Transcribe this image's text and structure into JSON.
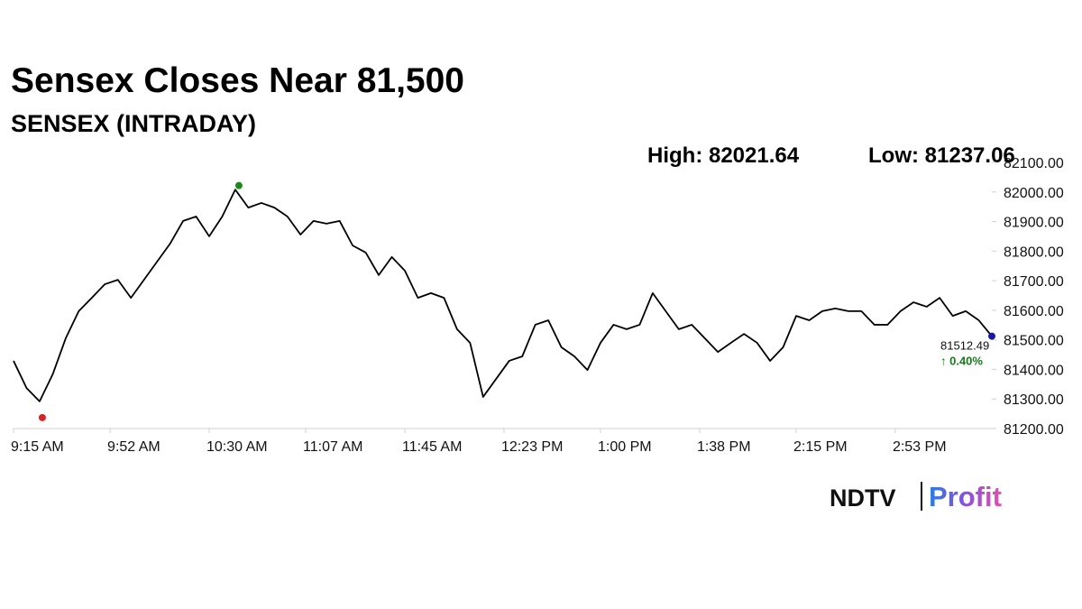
{
  "chart_data": {
    "type": "line",
    "title": "Sensex Closes Near 81,500",
    "subtitle": "SENSEX (INTRADAY)",
    "stats": [
      {
        "label": "High:",
        "value": 82021.64,
        "color": "#1a8a1a"
      },
      {
        "label": "Low:",
        "value": 81237.06,
        "color": "#e02020"
      }
    ],
    "color": "#000000",
    "x": [
      "9:15 AM",
      "9:20 AM",
      "9:25 AM",
      "9:30 AM",
      "9:35 AM",
      "9:40 AM",
      "9:45 AM",
      "9:50 AM",
      "9:55 AM",
      "10:00 AM",
      "10:05 AM",
      "10:10 AM",
      "10:15 AM",
      "10:20 AM",
      "10:25 AM",
      "10:30 AM",
      "10:35 AM",
      "10:40 AM",
      "10:45 AM",
      "10:50 AM",
      "10:55 AM",
      "11:00 AM",
      "11:05 AM",
      "11:10 AM",
      "11:15 AM",
      "11:20 AM",
      "11:25 AM",
      "11:30 AM",
      "11:35 AM",
      "11:40 AM",
      "11:45 AM",
      "11:50 AM",
      "11:55 AM",
      "12:00 PM",
      "12:05 PM",
      "12:10 PM",
      "12:15 PM",
      "12:20 PM",
      "12:25 PM",
      "12:30 PM",
      "12:35 PM",
      "12:40 PM",
      "12:45 PM",
      "12:50 PM",
      "12:55 PM",
      "1:00 PM",
      "1:05 PM",
      "1:10 PM",
      "1:15 PM",
      "1:20 PM",
      "1:25 PM",
      "1:30 PM",
      "1:35 PM",
      "1:40 PM",
      "1:45 PM",
      "1:50 PM",
      "1:55 PM",
      "2:00 PM",
      "2:05 PM",
      "2:10 PM",
      "2:15 PM",
      "2:20 PM",
      "2:25 PM",
      "2:30 PM",
      "2:35 PM",
      "2:40 PM",
      "2:45 PM",
      "2:50 PM",
      "2:55 PM",
      "3:00 PM",
      "3:05 PM",
      "3:10 PM",
      "3:15 PM",
      "3:20 PM",
      "3:25 PM",
      "3:30 PM"
    ],
    "values": [
      81429,
      81337,
      81292,
      81383,
      81505,
      81597,
      81642,
      81688,
      81703,
      81642,
      81703,
      81764,
      81825,
      81902,
      81917,
      81850,
      81917,
      82008,
      81947,
      81963,
      81947,
      81917,
      81856,
      81902,
      81893,
      81902,
      81819,
      81795,
      81719,
      81780,
      81734,
      81642,
      81658,
      81642,
      81536,
      81490,
      81307,
      81368,
      81429,
      81444,
      81551,
      81566,
      81475,
      81444,
      81398,
      81490,
      81551,
      81536,
      81551,
      81658,
      81597,
      81536,
      81551,
      81505,
      81459,
      81490,
      81520,
      81490,
      81429,
      81475,
      81581,
      81566,
      81597,
      81606,
      81597,
      81597,
      81551,
      81551,
      81597,
      81627,
      81612,
      81642,
      81581,
      81597,
      81566,
      81512.49
    ],
    "last_color": "#1a1aa0",
    "change": {
      "value": 0.4,
      "label": "↑ 0.40%",
      "color": "#1a7a1a"
    },
    "xlim": [
      "9:15 AM",
      "3:30 PM"
    ],
    "xticks": [
      "9:15 AM",
      "9:52 AM",
      "10:30 AM",
      "11:07 AM",
      "11:45 AM",
      "12:23 PM",
      "1:00 PM",
      "1:38 PM",
      "2:15 PM",
      "2:53 PM"
    ],
    "ylim": [
      81200,
      82100
    ],
    "yticks": [
      {
        "value": 81200,
        "label": "81200.00"
      },
      {
        "value": 81300,
        "label": "81300.00"
      },
      {
        "value": 81400,
        "label": "81400.00"
      },
      {
        "value": 81500,
        "label": "81500.00"
      },
      {
        "value": 81600,
        "label": "81600.00"
      },
      {
        "value": 81700,
        "label": "81700.00"
      },
      {
        "value": 81800,
        "label": "81800.00"
      },
      {
        "value": 81900,
        "label": "81900.00"
      },
      {
        "value": 82000,
        "label": "82000.00"
      },
      {
        "value": 82100,
        "label": "82100.00"
      }
    ],
    "grid": false
  },
  "logo": [
    "NDTV",
    "Profit"
  ]
}
